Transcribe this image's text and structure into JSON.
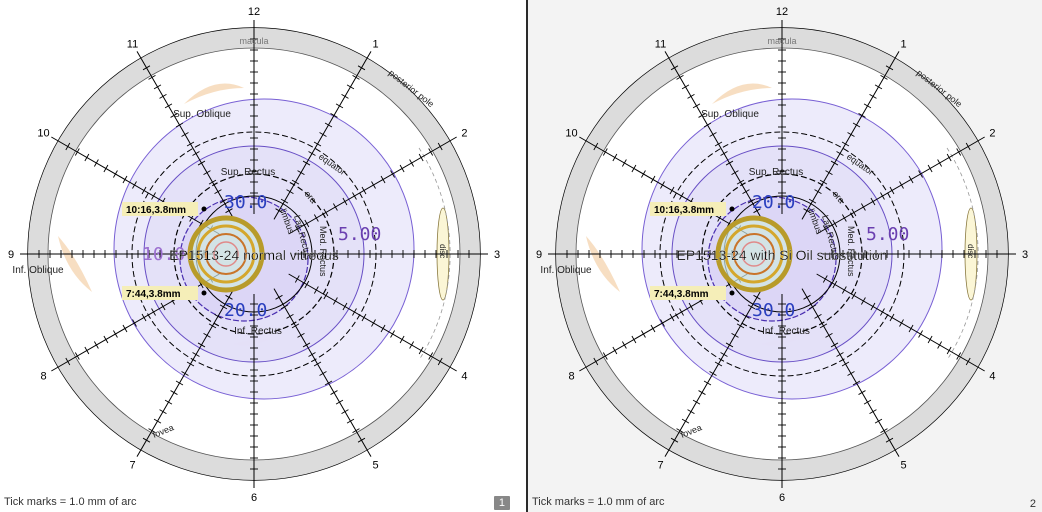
{
  "panels": [
    {
      "title": "EP1513-24 normal vitreous",
      "page_number": "1",
      "page_active": true,
      "background": "#ffffff",
      "footer": "Tick marks = 1.0 mm of arc",
      "clock_labels": [
        "12",
        "1",
        "2",
        "3",
        "4",
        "5",
        "6",
        "7",
        "8",
        "9",
        "10",
        "11"
      ],
      "ring_labels": {
        "top": "macula",
        "posterior_pole": "posterior pole",
        "equator": "equator",
        "ora": "ora",
        "fovea": "fovea",
        "disc": "disc"
      },
      "muscle_labels": {
        "sup_oblique": "Sup. Oblique",
        "sup_rectus": "Sup. Rectus",
        "inf_oblique": "Inf. Oblique",
        "inf_rectus": "Inf. Rectus",
        "med_rectus": "Med. Rectus",
        "lat_rectus": "Lat. Rectus",
        "limbus": "limbus"
      },
      "markers": [
        {
          "text": "10:16,3.8mm",
          "pos": "upper"
        },
        {
          "text": "7:44,3.8mm",
          "pos": "lower"
        }
      ],
      "isopter_values": [
        {
          "text": "30.0",
          "color": "#2a3fbf",
          "where": "upper"
        },
        {
          "text": "5.00",
          "color": "#6a3fb0",
          "where": "right"
        },
        {
          "text": "10.0",
          "color": "#9c6fd0",
          "where": "left"
        },
        {
          "text": "20.0",
          "color": "#2a3fbf",
          "where": "lower"
        }
      ]
    },
    {
      "title": "EP1513-24 with Si Oil substitution",
      "page_number": "2",
      "page_active": false,
      "background": "#f3f3f3",
      "footer": "Tick marks = 1.0 mm of arc",
      "clock_labels": [
        "12",
        "1",
        "2",
        "3",
        "4",
        "5",
        "6",
        "7",
        "8",
        "9",
        "10",
        "11"
      ],
      "ring_labels": {
        "top": "macula",
        "posterior_pole": "posterior pole",
        "equator": "equator",
        "ora": "ora",
        "fovea": "fovea",
        "disc": "disc"
      },
      "muscle_labels": {
        "sup_oblique": "Sup. Oblique",
        "sup_rectus": "Sup. Rectus",
        "inf_oblique": "Inf. Oblique",
        "inf_rectus": "Inf. Rectus",
        "med_rectus": "Med. Rectus",
        "lat_rectus": "Lat. Rectus",
        "limbus": "limbus"
      },
      "markers": [
        {
          "text": "10:16,3.8mm",
          "pos": "upper"
        },
        {
          "text": "7:44,3.8mm",
          "pos": "lower"
        }
      ],
      "isopter_values": [
        {
          "text": "20.0",
          "color": "#2a3fbf",
          "where": "upper"
        },
        {
          "text": "5.00",
          "color": "#6a3fb0",
          "where": "right"
        },
        {
          "text": "30.0",
          "color": "#2a3fbf",
          "where": "lower"
        }
      ]
    }
  ]
}
